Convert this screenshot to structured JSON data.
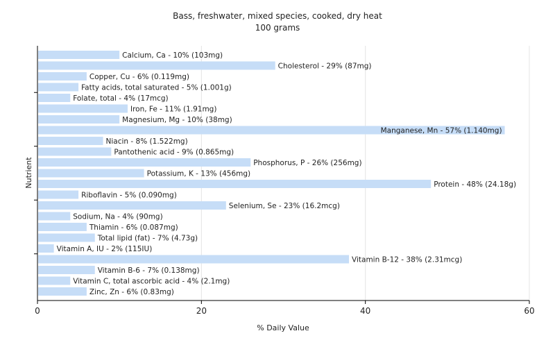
{
  "chart_data": {
    "type": "bar",
    "orientation": "horizontal",
    "title": "Bass, freshwater, mixed species, cooked, dry heat",
    "subtitle": "100 grams",
    "xlabel": "% Daily Value",
    "ylabel": "Nutrient",
    "xlim": [
      0,
      60
    ],
    "xticks": [
      0,
      20,
      40,
      60
    ],
    "grid": true,
    "legend": "none",
    "bar_color": "#c6ddf7",
    "categories": [
      "Calcium, Ca",
      "Cholesterol",
      "Copper, Cu",
      "Fatty acids, total saturated",
      "Folate, total",
      "Iron, Fe",
      "Magnesium, Mg",
      "Manganese, Mn",
      "Niacin",
      "Pantothenic acid",
      "Phosphorus, P",
      "Potassium, K",
      "Protein",
      "Riboflavin",
      "Selenium, Se",
      "Sodium, Na",
      "Thiamin",
      "Total lipid (fat)",
      "Vitamin A, IU",
      "Vitamin B-12",
      "Vitamin B-6",
      "Vitamin C, total ascorbic acid",
      "Zinc, Zn"
    ],
    "values": [
      10,
      29,
      6,
      5,
      4,
      11,
      10,
      57,
      8,
      9,
      26,
      13,
      48,
      5,
      23,
      4,
      6,
      7,
      2,
      38,
      7,
      4,
      6
    ],
    "labels": [
      "Calcium, Ca - 10% (103mg)",
      "Cholesterol - 29% (87mg)",
      "Copper, Cu - 6% (0.119mg)",
      "Fatty acids, total saturated - 5% (1.001g)",
      "Folate, total - 4% (17mcg)",
      "Iron, Fe - 11% (1.91mg)",
      "Magnesium, Mg - 10% (38mg)",
      "Manganese, Mn - 57% (1.140mg)",
      "Niacin - 8% (1.522mg)",
      "Pantothenic acid - 9% (0.865mg)",
      "Phosphorus, P - 26% (256mg)",
      "Potassium, K - 13% (456mg)",
      "Protein - 48% (24.18g)",
      "Riboflavin - 5% (0.090mg)",
      "Selenium, Se - 23% (16.2mcg)",
      "Sodium, Na - 4% (90mg)",
      "Thiamin - 6% (0.087mg)",
      "Total lipid (fat) - 7% (4.73g)",
      "Vitamin A, IU - 2% (115IU)",
      "Vitamin B-12 - 38% (2.31mcg)",
      "Vitamin B-6 - 7% (0.138mg)",
      "Vitamin C, total ascorbic acid - 4% (2.1mg)",
      "Zinc, Zn - 6% (0.83mg)"
    ]
  }
}
